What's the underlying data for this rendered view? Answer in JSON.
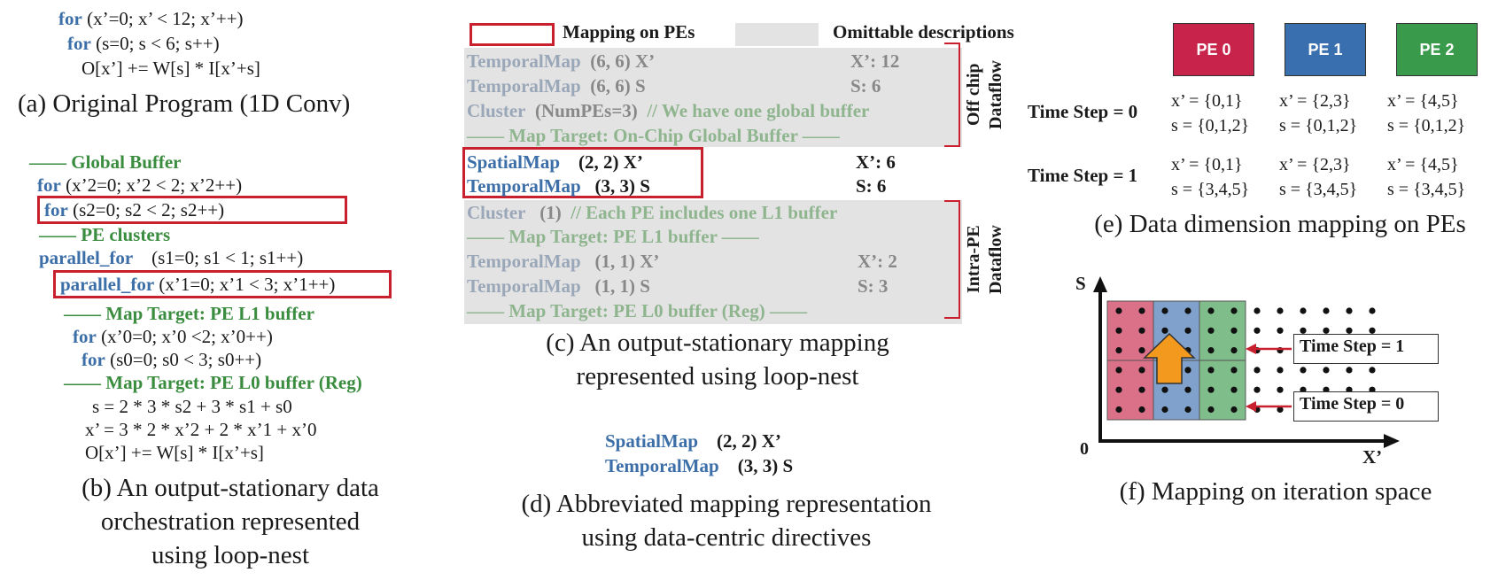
{
  "colors": {
    "pe0": "#c8234a",
    "pe1": "#3a6faf",
    "pe2": "#3a9a4c",
    "red": "#c8202e",
    "grey": "#e3e3e3",
    "keyword": "#3c6ea8",
    "green": "#3a8c3f"
  },
  "panel_a": {
    "l1_kw": "for",
    "l1_rest": "(x’=0; x’ < 12; x’++)",
    "l2_kw": "for",
    "l2_rest": "(s=0; s < 6; s++)",
    "l3": "O[x’] += W[s] * I[x’+s]",
    "caption": "(a) Original Program  (1D Conv)"
  },
  "panel_b": {
    "gb": "—— Global Buffer",
    "f1_kw": "for",
    "f1_rest": "(x’2=0; x’2 < 2; x’2++)",
    "f2_kw": "for",
    "f2_rest": "(s2=0; s2 < 2; s2++)",
    "pec": "—— PE clusters",
    "p1_kw": "parallel_for",
    "p1_rest": "(s1=0; s1 < 1; s1++)",
    "p2_kw": "parallel_for",
    "p2_rest": "(x’1=0; x’1 < 3; x’1++)",
    "mt1": "—— Map Target: PE L1 buffer",
    "f3_kw": "for",
    "f3_rest": "(x’0=0; x’0 <2; x’0++)",
    "f4_kw": "for",
    "f4_rest": "(s0=0; s0 < 3; s0++)",
    "mt2": "—— Map Target: PE L0 buffer (Reg)",
    "e1": "s = 2 * 3 * s2 + 3 * s1 + s0",
    "e2": "x’ = 3 * 2 * x’2 + 2 * x’1 + x’0",
    "e3": "O[x’] += W[s] * I[x’+s]",
    "caption1": "(b) An output-stationary data",
    "caption2": "orchestration represented",
    "caption3": "using loop-nest"
  },
  "panel_c": {
    "legend_map": "Mapping on PEs",
    "legend_omit": "Omittable descriptions",
    "r1_kw": "TemporalMap",
    "r1_arg": "(6, 6) X’",
    "r1_val": "X’: 12",
    "r2_kw": "TemporalMap",
    "r2_arg": "(6, 6) S",
    "r2_val": "S: 6",
    "r3_kw": "Cluster",
    "r3_arg": "(NumPEs=3)",
    "r3_cmt": "// We have one global buffer",
    "r4": "—— Map Target: On-Chip Global Buffer ——",
    "r5_kw": "SpatialMap",
    "r5_arg": "(2, 2) X’",
    "r5_val": "X’: 6",
    "r6_kw": "TemporalMap",
    "r6_arg": "(3, 3) S",
    "r6_val": "S: 6",
    "r7_kw": "Cluster",
    "r7_arg": "(1)",
    "r7_cmt": "// Each PE includes one L1 buffer",
    "r8": "—— Map Target: PE L1 buffer ——",
    "r9_kw": "TemporalMap",
    "r9_arg": "(1, 1) X’",
    "r9_val": "X’: 2",
    "r10_kw": "TemporalMap",
    "r10_arg": "(1, 1) S",
    "r10_val": "S: 3",
    "r11": "—— Map Target: PE L0 buffer (Reg) ——",
    "offchip1": "Off chip",
    "offchip2": "Dataflow",
    "intra1": "Intra-PE",
    "intra2": "Dataflow",
    "caption1": "(c) An output-stationary mapping",
    "caption2": "represented using loop-nest"
  },
  "panel_d": {
    "l1_kw": "SpatialMap",
    "l1_arg": "(2, 2) X’",
    "l2_kw": "TemporalMap",
    "l2_arg": "(3, 3) S",
    "caption1": "(d) Abbreviated mapping representation",
    "caption2": "using data-centric directives"
  },
  "panel_e": {
    "pes": [
      "PE 0",
      "PE 1",
      "PE 2"
    ],
    "ts0": "Time Step = 0",
    "ts1": "Time Step = 1",
    "t0": [
      [
        "x’ = {0,1}",
        "s = {0,1,2}"
      ],
      [
        "x’ = {2,3}",
        "s = {0,1,2}"
      ],
      [
        "x’ = {4,5}",
        "s = {0,1,2}"
      ]
    ],
    "t1": [
      [
        "x’ = {0,1}",
        "s = {3,4,5}"
      ],
      [
        "x’ = {2,3}",
        "s = {3,4,5}"
      ],
      [
        "x’ = {4,5}",
        "s = {3,4,5}"
      ]
    ],
    "caption": "(e) Data dimension mapping on PEs"
  },
  "panel_f": {
    "axis_s": "S",
    "axis_x": "X’",
    "origin": "0",
    "ts1": "Time Step = 1",
    "ts0": "Time Step = 0",
    "caption": "(f) Mapping on iteration space"
  }
}
